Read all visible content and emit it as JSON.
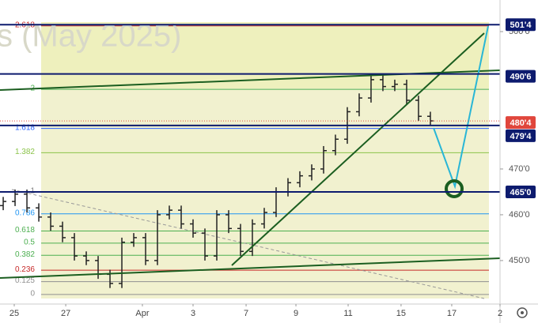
{
  "chart_data": {
    "type": "ohlc",
    "watermark": "s (May 2025)",
    "color": "#222222",
    "x": [
      0,
      1,
      2,
      3,
      4,
      5,
      6,
      7,
      8,
      9,
      10,
      11,
      12,
      13,
      14,
      15,
      16,
      17,
      18,
      19,
      20,
      21,
      22,
      23,
      24,
      25,
      26,
      27,
      28,
      29,
      30,
      31,
      32,
      33,
      34,
      35,
      36
    ],
    "open": [
      462,
      462.9,
      464.5,
      461.5,
      459.5,
      457.5,
      455,
      451,
      450,
      447,
      445,
      454,
      455,
      450,
      460,
      461,
      458,
      456,
      451,
      460,
      457,
      452,
      458,
      460.5,
      465,
      467,
      468.5,
      470,
      474,
      476.5,
      482.5,
      485.5,
      489.5,
      488,
      488.5,
      485,
      481.5
    ],
    "high": [
      463.9,
      465.5,
      465.5,
      462.5,
      460.5,
      458.5,
      456,
      452,
      451,
      448,
      455,
      456,
      456,
      461,
      462,
      462,
      459,
      457,
      461,
      461,
      458,
      459,
      461.5,
      466,
      468,
      469.5,
      471,
      475,
      477.5,
      483.5,
      486.5,
      490.5,
      490.5,
      489.5,
      489.5,
      486,
      482.5
    ],
    "low": [
      461,
      461.9,
      460.5,
      458.5,
      456.5,
      454,
      450,
      449,
      446,
      444,
      444,
      453,
      449,
      449,
      459,
      457,
      455,
      450,
      450,
      456,
      451,
      451,
      457,
      459.5,
      464,
      466,
      467.5,
      469,
      473,
      475.5,
      481.5,
      484.5,
      487,
      487,
      484,
      480.5,
      479.5
    ],
    "close": [
      462.9,
      464.5,
      461.5,
      459.5,
      457.5,
      455,
      451,
      450,
      447,
      445,
      454,
      455,
      450,
      460,
      461,
      458,
      456,
      451,
      460,
      457,
      452,
      458,
      460.5,
      465,
      467,
      468.5,
      470,
      474,
      476.5,
      482.5,
      485.5,
      489.5,
      488,
      488.5,
      485,
      481.5,
      480.5
    ],
    "xlim": [
      -0.27,
      41.87
    ],
    "xticks": [
      {
        "value": 0.93,
        "label": "25"
      },
      {
        "value": 5.27,
        "label": "27"
      },
      {
        "value": 11.73,
        "label": "Apr"
      },
      {
        "value": 16,
        "label": "3"
      },
      {
        "value": 20.47,
        "label": "7"
      },
      {
        "value": 24.67,
        "label": "9"
      },
      {
        "value": 29.07,
        "label": "11"
      },
      {
        "value": 33.53,
        "label": "15"
      },
      {
        "value": 37.8,
        "label": "17"
      },
      {
        "value": 41.87,
        "label": "2"
      }
    ],
    "ylim": [
      440.5,
      506.9
    ],
    "yticks": [
      {
        "value": 450,
        "label": "450'0"
      },
      {
        "value": 460,
        "label": "460'0"
      },
      {
        "value": 470,
        "label": "470'0"
      },
      {
        "value": 500,
        "label": "500'0"
      }
    ],
    "fib_range": [
      442.6,
      465
    ],
    "fib_levels": [
      {
        "ratio": 2.618,
        "color": "#c62828"
      },
      {
        "ratio": 2,
        "color": "#4caf50"
      },
      {
        "ratio": 1.618,
        "color": "#2962ff"
      },
      {
        "ratio": 1.382,
        "color": "#8bc34a"
      },
      {
        "ratio": 1,
        "color": "#808080"
      },
      {
        "ratio": 0.786,
        "color": "#2196f3"
      },
      {
        "ratio": 0.618,
        "color": "#4caf50"
      },
      {
        "ratio": 0.5,
        "color": "#4caf50"
      },
      {
        "ratio": 0.382,
        "color": "#4caf50"
      },
      {
        "ratio": 0.236,
        "color": "#c62828"
      },
      {
        "ratio": 0.125,
        "color": "#909090"
      },
      {
        "ratio": 0,
        "color": "#909090"
      }
    ],
    "price_lines": [
      {
        "value": 501.5,
        "label": "501'4",
        "color": "#0d1b6e"
      },
      {
        "value": 490.75,
        "label": "490'6",
        "color": "#0d1b6e"
      },
      {
        "value": 480.5,
        "label": "480'4",
        "color": "#e0463c"
      },
      {
        "value": 479.5,
        "label": "479'4",
        "color": "#0d1b6e"
      },
      {
        "value": 465,
        "label": "465'0",
        "color": "#0d1b6e"
      }
    ]
  }
}
